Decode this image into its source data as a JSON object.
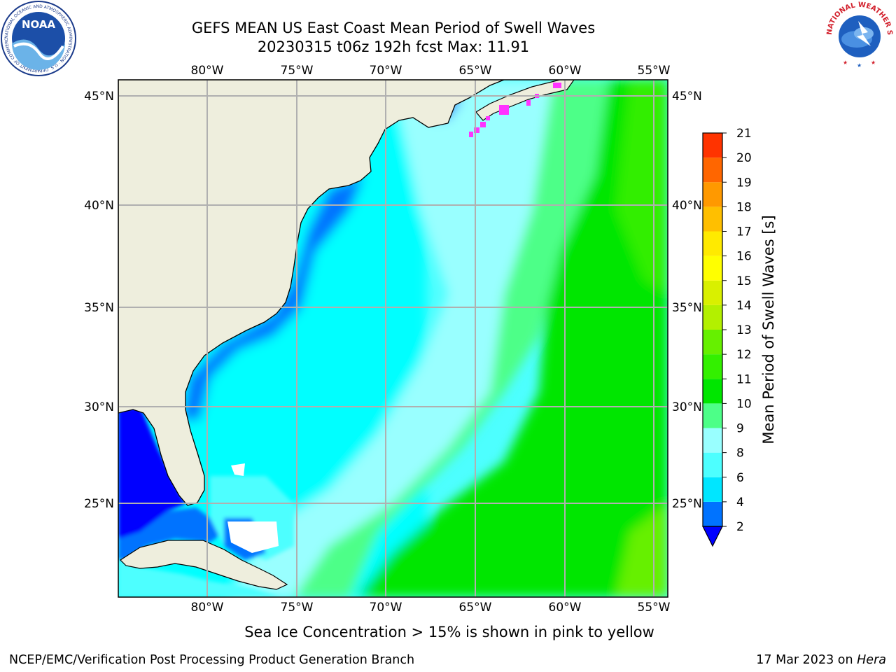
{
  "title_line1": "GEFS MEAN US East Coast Mean Period of Swell Waves",
  "title_line2": "20230315 t06z 192h fcst   Max: 11.91",
  "map": {
    "lon_ticks": [
      "80°W",
      "75°W",
      "70°W",
      "65°W",
      "60°W",
      "55°W"
    ],
    "lat_ticks_left": [
      "45°N",
      "40°N",
      "35°N",
      "30°N",
      "25°N"
    ],
    "lat_ticks_right": [
      "45°N",
      "40°N",
      "35°N",
      "30°N",
      "25°N"
    ],
    "land_color": "#eeeedd",
    "grid_color": "#b0b0b0"
  },
  "colorbar": {
    "title": "Mean Period of Swell Waves [s]",
    "levels": [
      "2",
      "4",
      "6",
      "8",
      "9",
      "10",
      "11",
      "12",
      "13",
      "14",
      "15",
      "16",
      "17",
      "18",
      "19",
      "20",
      "21"
    ],
    "colors": [
      "#0073ff",
      "#00e6ff",
      "#4dffff",
      "#99ffff",
      "#4dff88",
      "#00e600",
      "#33f000",
      "#66f000",
      "#b3f000",
      "#d9f000",
      "#ffff00",
      "#ffea00",
      "#ffbf00",
      "#ff9900",
      "#ff6600",
      "#ff3300"
    ],
    "under_color": "#0000ff"
  },
  "note": "Sea Ice Concentration > 15% is shown in pink to yellow",
  "footer_left": "NCEP/EMC/Verification Post Processing Product Generation Branch",
  "footer_date": "17 Mar 2023 on ",
  "footer_machine": "Hera",
  "logos": {
    "noaa_text": "NOAA",
    "noaa_ring": "NATIONAL OCEANIC AND ATMOSPHERIC ADMINISTRATION · U.S. DEPARTMENT OF COMMERCE",
    "nws_ring": "NATIONAL WEATHER SERVICE"
  }
}
